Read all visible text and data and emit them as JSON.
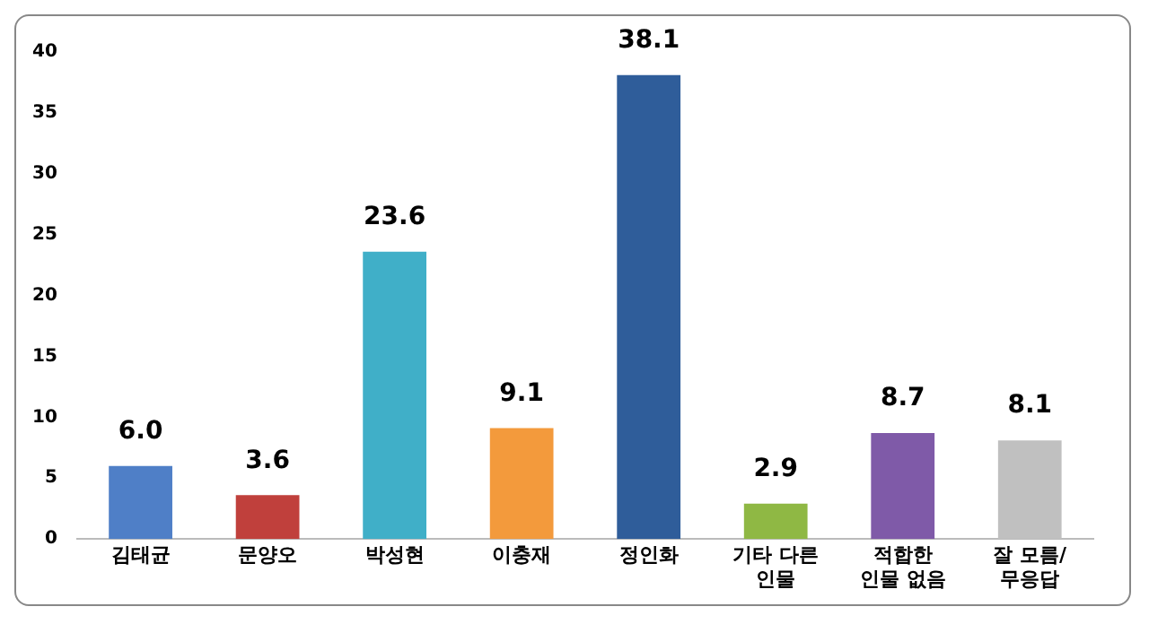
{
  "chart_data": {
    "type": "bar",
    "categories": [
      "김태균",
      "문양오",
      "박성현",
      "이충재",
      "정인화",
      "기타 다른\n인물",
      "적합한\n인물 없음",
      "잘 모름/\n무응답"
    ],
    "values": [
      6.0,
      3.6,
      23.6,
      9.1,
      38.1,
      2.9,
      8.7,
      8.1
    ],
    "colors": [
      "#4f7fc7",
      "#c0403c",
      "#40afc8",
      "#f39a3c",
      "#2f5d9a",
      "#8fb844",
      "#7f5aa8",
      "#c0c0c0"
    ],
    "ylim": [
      0,
      40
    ],
    "yticks": [
      0,
      5,
      10,
      15,
      20,
      25,
      30,
      35,
      40
    ],
    "value_labels": [
      "6.0",
      "3.6",
      "23.6",
      "9.1",
      "38.1",
      "2.9",
      "8.7",
      "8.1"
    ],
    "grid": false,
    "legend": false
  }
}
